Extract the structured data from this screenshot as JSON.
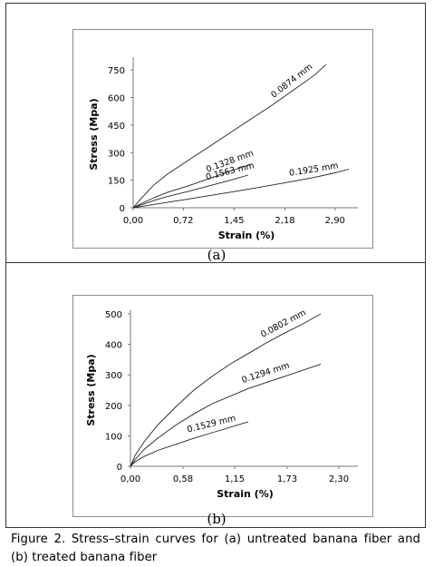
{
  "caption": "Figure 2. Stress–strain curves for (a) untreated banana fiber and (b) treated banana fiber",
  "chart_data": [
    {
      "panel_label": "(a)",
      "type": "line",
      "xlabel": "Strain (%)",
      "ylabel": "Stress (Mpa)",
      "xlim": [
        0,
        3.15
      ],
      "ylim": [
        0,
        800
      ],
      "x_ticks": [
        "0,00",
        "0,72",
        "1,45",
        "2,18",
        "2,90"
      ],
      "x_tick_values": [
        0,
        0.72,
        1.45,
        2.18,
        2.9
      ],
      "y_ticks": [
        "0",
        "150",
        "300",
        "450",
        "600",
        "750"
      ],
      "y_tick_values": [
        0,
        150,
        300,
        450,
        600,
        750
      ],
      "grid": false,
      "series": [
        {
          "name": "0.0874 mm",
          "x": [
            0,
            0.1,
            0.3,
            0.5,
            0.8,
            1.1,
            1.4,
            1.7,
            2.0,
            2.3,
            2.6,
            2.77
          ],
          "y": [
            0,
            45,
            125,
            185,
            260,
            335,
            410,
            485,
            560,
            640,
            720,
            780
          ]
        },
        {
          "name": "0.1328 mm",
          "x": [
            0,
            0.1,
            0.3,
            0.5,
            0.8,
            1.1,
            1.4,
            1.7
          ],
          "y": [
            0,
            20,
            55,
            85,
            120,
            160,
            200,
            238
          ]
        },
        {
          "name": "0.1563 mm",
          "x": [
            0,
            0.1,
            0.3,
            0.5,
            0.8,
            1.1,
            1.4,
            1.65
          ],
          "y": [
            0,
            14,
            40,
            62,
            90,
            120,
            150,
            178
          ]
        },
        {
          "name": "0.1925 mm",
          "x": [
            0,
            0.2,
            0.5,
            0.8,
            1.1,
            1.4,
            1.7,
            2.0,
            2.3,
            2.6,
            2.9,
            3.1
          ],
          "y": [
            0,
            12,
            30,
            48,
            66,
            85,
            104,
            124,
            144,
            165,
            190,
            210
          ]
        }
      ],
      "annotations": [
        "0.0874 mm",
        "0.1328 mm",
        "0.1563 mm",
        "0.1925 mm"
      ]
    },
    {
      "panel_label": "(b)",
      "type": "line",
      "xlabel": "Strain (%)",
      "ylabel": "Stress (Mpa)",
      "xlim": [
        0,
        2.45
      ],
      "ylim": [
        0,
        500
      ],
      "x_ticks": [
        "0,00",
        "0,58",
        "1,15",
        "1,73",
        "2,30"
      ],
      "x_tick_values": [
        0,
        0.58,
        1.15,
        1.73,
        2.3
      ],
      "y_ticks": [
        "0",
        "100",
        "200",
        "300",
        "400",
        "500"
      ],
      "y_tick_values": [
        0,
        100,
        200,
        300,
        400,
        500
      ],
      "grid": false,
      "series": [
        {
          "name": "0.0802 mm",
          "x": [
            0,
            0.05,
            0.15,
            0.3,
            0.5,
            0.7,
            0.9,
            1.1,
            1.3,
            1.5,
            1.7,
            1.9,
            2.1
          ],
          "y": [
            0,
            35,
            80,
            135,
            195,
            250,
            295,
            335,
            370,
            405,
            437,
            467,
            500
          ]
        },
        {
          "name": "0.1294 mm",
          "x": [
            0,
            0.05,
            0.15,
            0.3,
            0.5,
            0.7,
            0.9,
            1.1,
            1.3,
            1.5,
            1.7,
            1.9,
            2.1
          ],
          "y": [
            0,
            22,
            55,
            92,
            135,
            172,
            205,
            230,
            255,
            275,
            295,
            315,
            335
          ]
        },
        {
          "name": "0.1529 mm",
          "x": [
            0,
            0.05,
            0.15,
            0.3,
            0.5,
            0.7,
            0.9,
            1.1,
            1.3
          ],
          "y": [
            0,
            15,
            32,
            52,
            72,
            92,
            110,
            128,
            146
          ]
        }
      ],
      "annotations": [
        "0.0802 mm",
        "0.1294 mm",
        "0.1529 mm"
      ]
    }
  ]
}
